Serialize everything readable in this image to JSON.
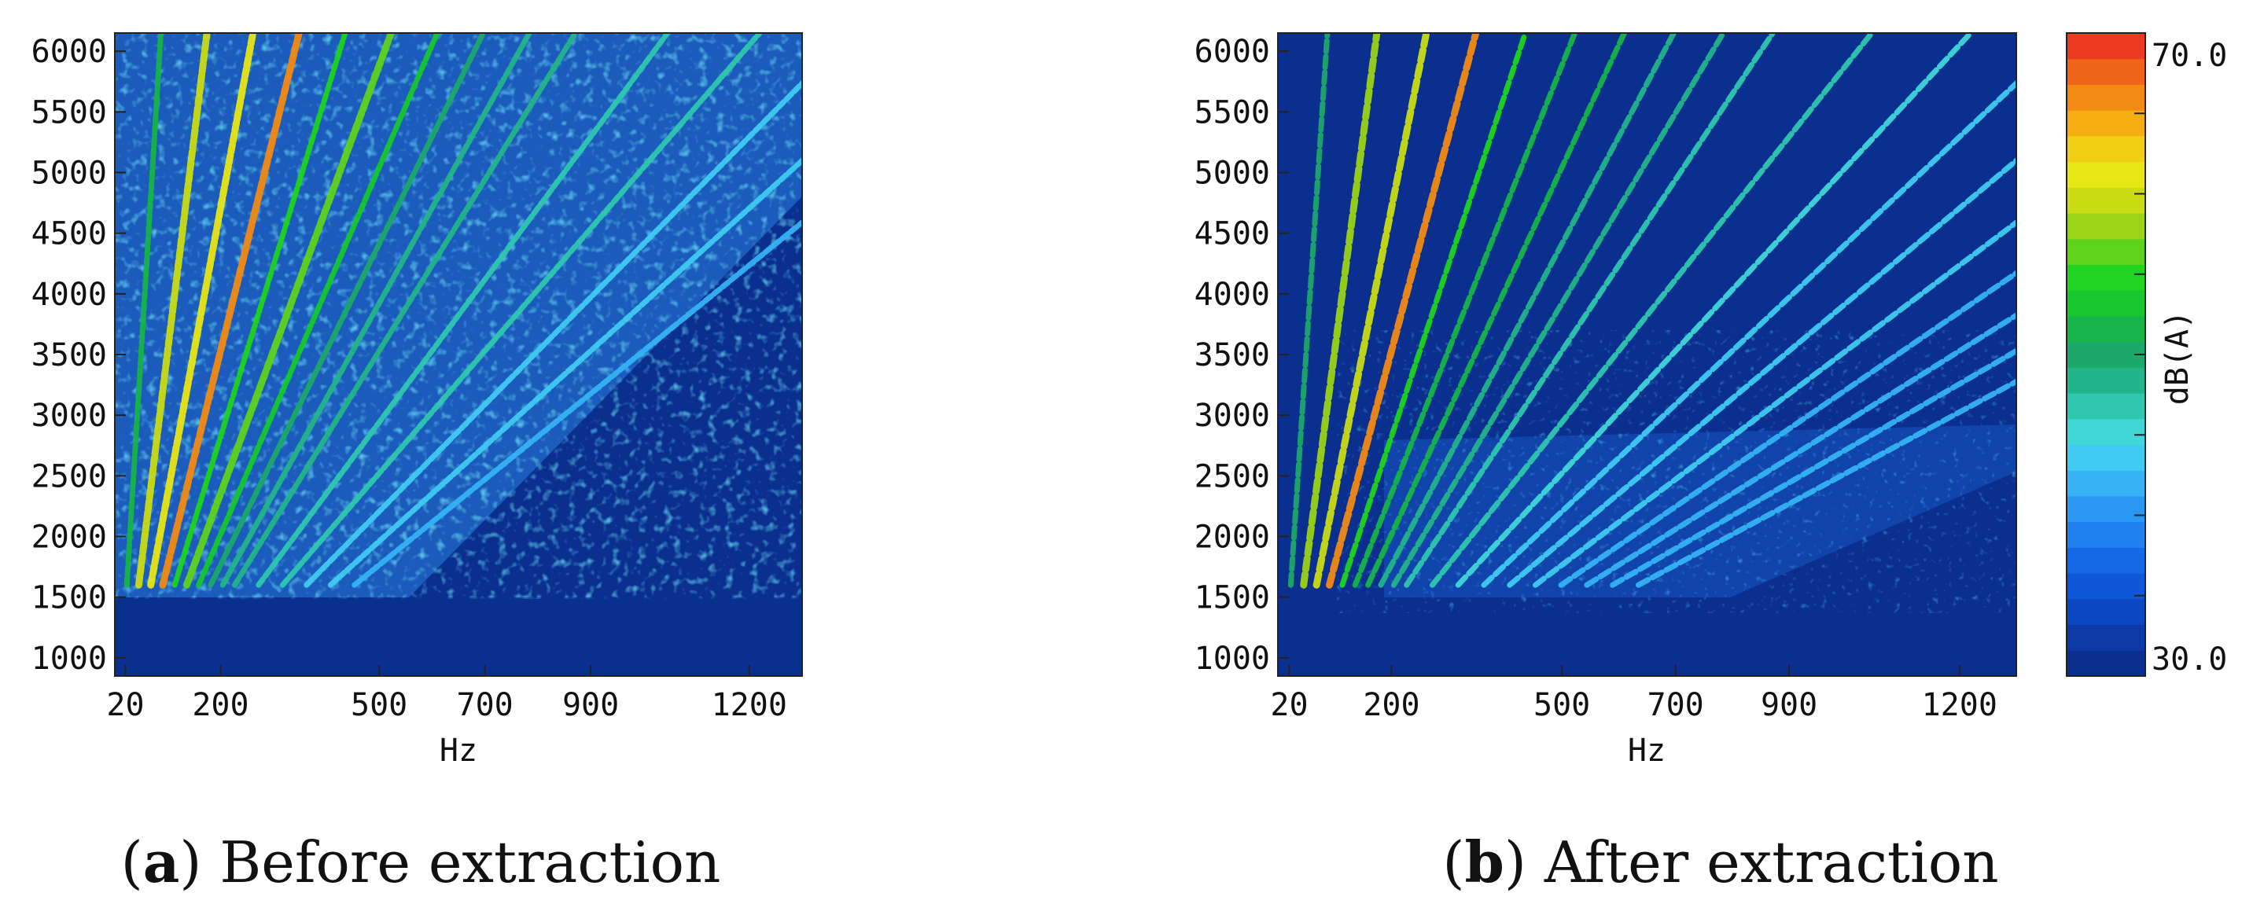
{
  "chart_data": [
    {
      "type": "heatmap",
      "panel_letter": "a",
      "caption": "Before extraction",
      "xlabel": "Hz",
      "ylabel": "",
      "x_ticks": [
        20,
        200,
        500,
        700,
        900,
        1200
      ],
      "y_ticks": [
        1000,
        1500,
        2000,
        2500,
        3000,
        3500,
        4000,
        4500,
        5000,
        5500,
        6000
      ],
      "xlim": [
        0,
        1300
      ],
      "ylim": [
        850,
        6150
      ],
      "background_level": 30,
      "order_lines": [
        {
          "order": 1,
          "level": 52
        },
        {
          "order": 2,
          "level": 60
        },
        {
          "order": 3,
          "level": 62
        },
        {
          "order": 4,
          "level": 66
        },
        {
          "order": 5,
          "level": 55
        },
        {
          "order": 6,
          "level": 57
        },
        {
          "order": 7,
          "level": 53
        },
        {
          "order": 8,
          "level": 50
        },
        {
          "order": 9,
          "level": 49
        },
        {
          "order": 10,
          "level": 48
        },
        {
          "order": 12,
          "level": 46
        },
        {
          "order": 14,
          "level": 46
        },
        {
          "order": 16,
          "level": 44
        },
        {
          "order": 18,
          "level": 43
        },
        {
          "order": 20,
          "level": 42
        }
      ]
    },
    {
      "type": "heatmap",
      "panel_letter": "b",
      "caption": "After extraction",
      "xlabel": "Hz",
      "ylabel": "",
      "x_ticks": [
        20,
        200,
        500,
        700,
        900,
        1200
      ],
      "y_ticks": [
        1000,
        1500,
        2000,
        2500,
        3000,
        3500,
        4000,
        4500,
        5000,
        5500,
        6000
      ],
      "xlim": [
        0,
        1300
      ],
      "ylim": [
        850,
        6150
      ],
      "background_level": 30,
      "order_lines": [
        {
          "order": 1,
          "level": 50
        },
        {
          "order": 2,
          "level": 58
        },
        {
          "order": 3,
          "level": 60
        },
        {
          "order": 4,
          "level": 66
        },
        {
          "order": 5,
          "level": 55
        },
        {
          "order": 6,
          "level": 52
        },
        {
          "order": 7,
          "level": 51
        },
        {
          "order": 8,
          "level": 49
        },
        {
          "order": 9,
          "level": 48
        },
        {
          "order": 10,
          "level": 47
        },
        {
          "order": 12,
          "level": 46
        },
        {
          "order": 14,
          "level": 45
        },
        {
          "order": 16,
          "level": 44
        },
        {
          "order": 18,
          "level": 43
        },
        {
          "order": 20,
          "level": 43
        },
        {
          "order": 22,
          "level": 42
        },
        {
          "order": 24,
          "level": 42
        },
        {
          "order": 26,
          "level": 41
        },
        {
          "order": 28,
          "level": 41
        }
      ]
    }
  ],
  "colorbar": {
    "label": "dB(A)",
    "min_label": "30.0",
    "max_label": "70.0",
    "min": 30,
    "max": 70,
    "colors": [
      "#0a2f8f",
      "#0b3aa6",
      "#0c47c2",
      "#0d57d8",
      "#1569e6",
      "#1f80ee",
      "#2a98f2",
      "#35b3f5",
      "#3fcbf2",
      "#3fd7d8",
      "#2fc7b0",
      "#22b48a",
      "#1ca86a",
      "#17b449",
      "#16c72e",
      "#1ed41f",
      "#5fd31b",
      "#9bd316",
      "#c9dc14",
      "#e8e615",
      "#f2cf14",
      "#f5ad12",
      "#f28a14",
      "#ef6418",
      "#ec3a20"
    ]
  }
}
